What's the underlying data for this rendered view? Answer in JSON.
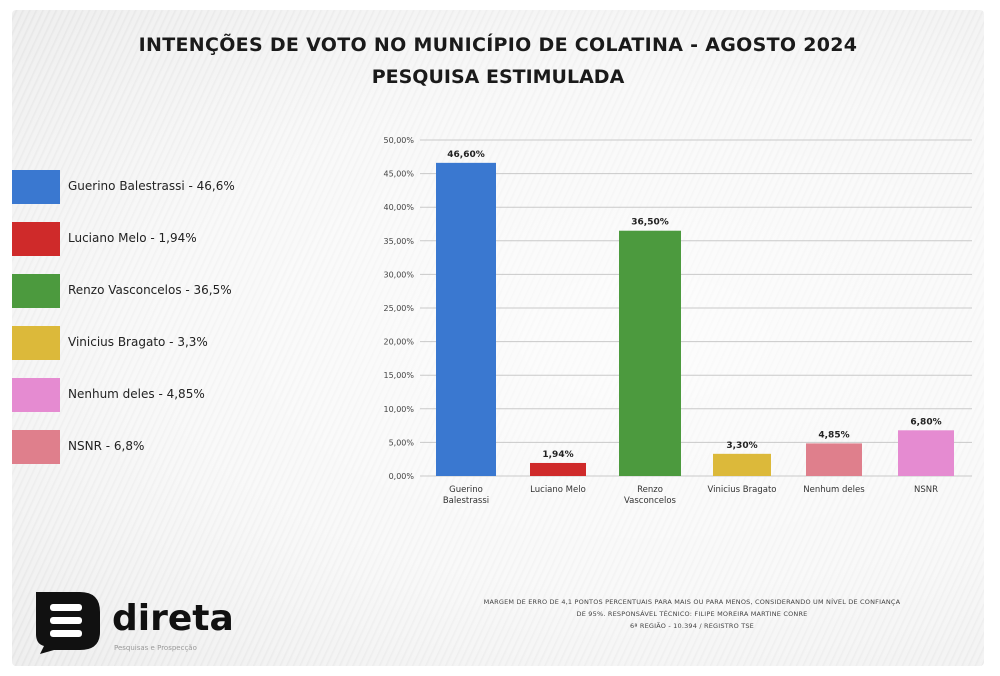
{
  "title_line1": "INTENÇÕES DE VOTO NO MUNICÍPIO DE COLATINA - AGOSTO 2024",
  "title_line2": "PESQUISA ESTIMULADA",
  "legend": [
    {
      "label": "Guerino Balestrassi - 46,6%",
      "color": "#3a78d0"
    },
    {
      "label": "Luciano Melo - 1,94%",
      "color": "#cf2a2a"
    },
    {
      "label": "Renzo Vasconcelos - 36,5%",
      "color": "#4c9a3e"
    },
    {
      "label": "Vinicius Bragato - 3,3%",
      "color": "#dcb93a"
    },
    {
      "label": "Nenhum deles - 4,85%",
      "color": "#e58bd1"
    },
    {
      "label": "NSNR - 6,8%",
      "color": "#df7f8c"
    }
  ],
  "chart_data": {
    "type": "bar",
    "categories": [
      "Guerino Balestrassi",
      "Luciano Melo",
      "Renzo Vasconcelos",
      "Vinicius Bragato",
      "Nenhum deles",
      "NSNR"
    ],
    "values": [
      46.6,
      1.94,
      36.5,
      3.3,
      4.85,
      6.8
    ],
    "value_labels": [
      "46,60%",
      "1,94%",
      "36,50%",
      "3,30%",
      "4,85%",
      "6,80%"
    ],
    "colors": [
      "#3a78d0",
      "#cf2a2a",
      "#4c9a3e",
      "#dcb93a",
      "#df7f8c",
      "#e58bd1"
    ],
    "ylim": [
      0,
      50
    ],
    "yticks": [
      "0,00%",
      "5,00%",
      "10,00%",
      "15,00%",
      "20,00%",
      "25,00%",
      "30,00%",
      "35,00%",
      "40,00%",
      "45,00%",
      "50,00%"
    ],
    "grid": true
  },
  "footer": {
    "line1": "MARGEM DE ERRO DE 4,1 PONTOS PERCENTUAIS PARA MAIS OU PARA MENOS, CONSIDERANDO UM NÍVEL DE CONFIANÇA",
    "line2": "DE 95%. RESPONSÁVEL TÉCNICO: FILIPE MOREIRA MARTINE CONRE",
    "line3": "6ª REGIÃO - 10.394 / REGISTRO TSE"
  },
  "logo": {
    "name": "direta",
    "tagline": "Pesquisas e Prospecção"
  }
}
